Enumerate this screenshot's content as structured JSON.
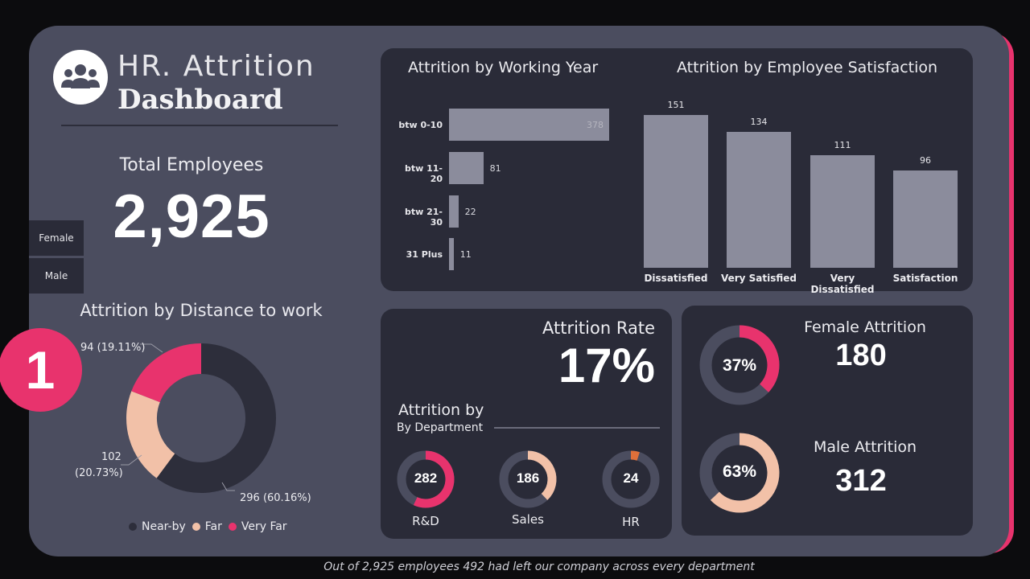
{
  "header": {
    "title_line1": "HR. Attrition",
    "title_line2": "Dashboard",
    "logo_icon": "users-group-icon"
  },
  "total_employees": {
    "label": "Total Employees",
    "value": "2,925"
  },
  "slicer": {
    "items": [
      "Female",
      "Male"
    ]
  },
  "badge": {
    "number": "1"
  },
  "distance_chart": {
    "title": "Attrition by Distance to work",
    "labels": {
      "near_by": "296 (60.16%)",
      "far_l1": "102",
      "far_l2": "(20.73%)",
      "very_far": "94 (19.11%)"
    },
    "legend": [
      "Near-by",
      "Far",
      "Very Far"
    ]
  },
  "working_year_chart": {
    "title": "Attrition by Working Year"
  },
  "satisfaction_chart": {
    "title": "Attrition by Employee Satisfaction"
  },
  "attrition_rate": {
    "label": "Attrition Rate",
    "value": "17%"
  },
  "department": {
    "title": "Attrition by",
    "subtitle": "By Department",
    "items": [
      {
        "label": "R&D",
        "value": "282"
      },
      {
        "label": "Sales",
        "value": "186"
      },
      {
        "label": "HR",
        "value": "24"
      }
    ]
  },
  "gender": {
    "female": {
      "title": "Female Attrition",
      "value": "180",
      "pct": "37%"
    },
    "male": {
      "title": "Male Attrition",
      "value": "312",
      "pct": "63%"
    }
  },
  "footer": {
    "text": "Out of 2,925 employees 492 had left our company across every department"
  },
  "colors": {
    "accent": "#e8336d",
    "peach": "#f2c1a8",
    "dark_segment": "#2d2e3b",
    "bar": "#8b8c9c",
    "panel": "#2a2b38",
    "hr_orange": "#e0703a"
  },
  "chart_data": [
    {
      "type": "bar",
      "orientation": "horizontal",
      "title": "Attrition by Working Year",
      "categories": [
        "btw 0-10",
        "btw 11-20",
        "btw 21-30",
        "31 Plus"
      ],
      "values": [
        378,
        81,
        22,
        11
      ]
    },
    {
      "type": "bar",
      "title": "Attrition by Employee Satisfaction",
      "categories": [
        "Dissatisfied",
        "Very Satisfied",
        "Very Dissatisfied",
        "Satisfaction"
      ],
      "values": [
        151,
        134,
        111,
        96
      ]
    },
    {
      "type": "pie",
      "title": "Attrition by Distance to work",
      "categories": [
        "Near-by",
        "Far",
        "Very Far"
      ],
      "values": [
        296,
        102,
        94
      ],
      "percent": [
        60.16,
        20.73,
        19.11
      ]
    },
    {
      "type": "pie",
      "title": "Attrition by By Department",
      "categories": [
        "R&D",
        "Sales",
        "HR"
      ],
      "values": [
        282,
        186,
        24
      ],
      "ring_fill": [
        0.57,
        0.38,
        0.05
      ]
    },
    {
      "type": "pie",
      "title": "Gender Attrition",
      "categories": [
        "Female Attrition",
        "Male Attrition"
      ],
      "values": [
        180,
        312
      ],
      "percent": [
        37,
        63
      ]
    }
  ]
}
